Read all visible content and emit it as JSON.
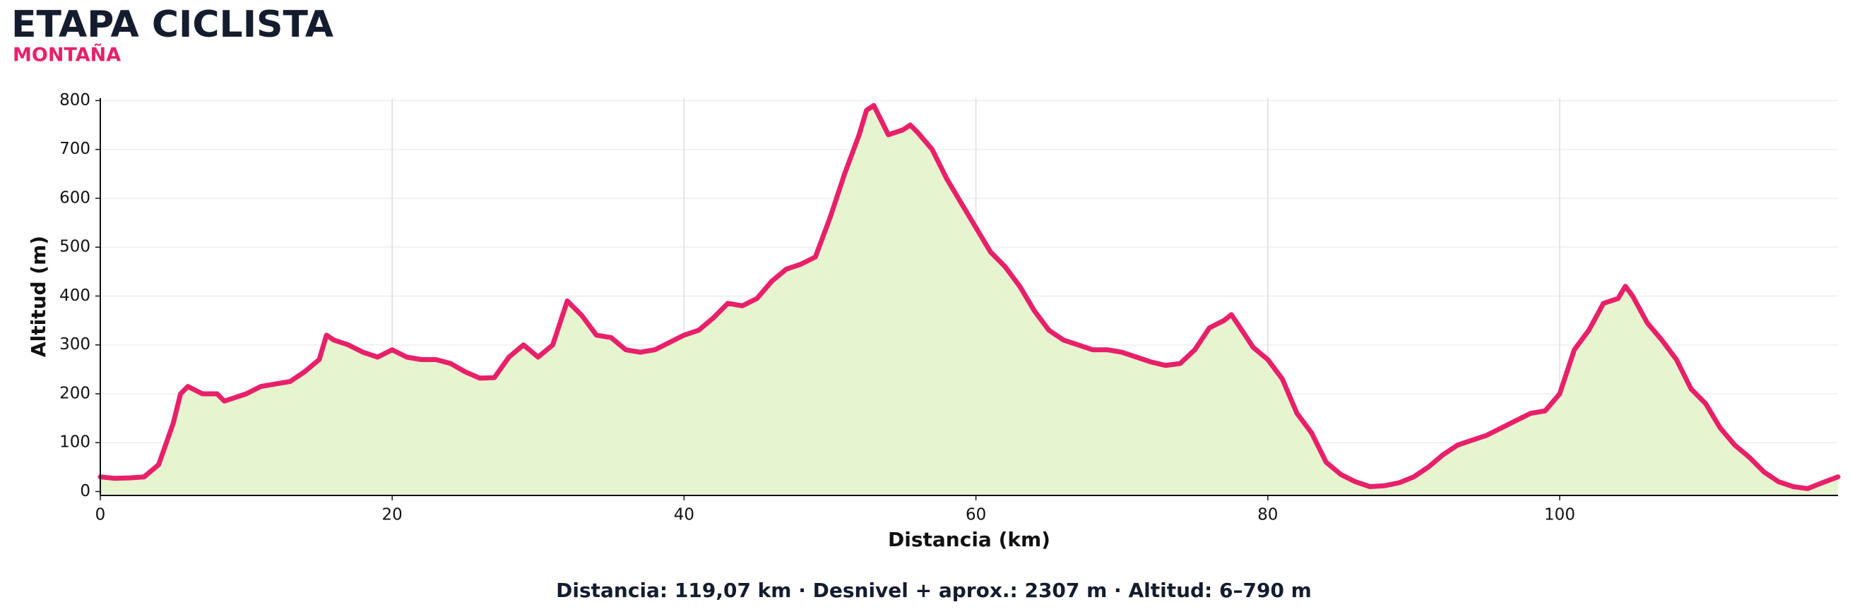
{
  "chart_data": {
    "type": "area",
    "title": "ETAPA CICLISTA",
    "subtitle": "MONTAÑA",
    "xlabel": "Distancia (km)",
    "ylabel": "Altitud (m)",
    "annotation": "Distancia: 119,07 km · Desnivel + aprox.: 2307 m · Altitud: 6–790 m",
    "color": "#e8206a",
    "fill_color": "#e6f5d0",
    "grid": true,
    "xlim": [
      0,
      119.07
    ],
    "ylim": [
      -8,
      805
    ],
    "xticks": [
      0,
      20,
      40,
      60,
      80,
      100
    ],
    "yticks": [
      0,
      100,
      200,
      300,
      400,
      500,
      600,
      700,
      800
    ],
    "x": [
      0,
      1,
      2,
      3,
      4,
      5,
      5.5,
      6,
      7,
      8,
      8.5,
      9,
      10,
      11,
      12,
      13,
      14,
      15,
      15.5,
      16,
      17,
      18,
      19,
      20,
      21,
      22,
      23,
      24,
      25,
      26,
      27,
      28,
      29,
      30,
      31,
      32,
      33,
      34,
      35,
      36,
      37,
      38,
      39,
      40,
      41,
      42,
      43,
      44,
      45,
      46,
      47,
      48,
      49,
      50,
      51,
      52,
      52.5,
      53,
      54,
      55,
      55.5,
      56,
      57,
      58,
      59,
      60,
      61,
      62,
      63,
      64,
      65,
      66,
      67,
      68,
      69,
      70,
      71,
      72,
      73,
      74,
      75,
      76,
      77,
      77.5,
      78,
      79,
      80,
      81,
      82,
      83,
      84,
      85,
      86,
      87,
      88,
      89,
      90,
      91,
      92,
      93,
      94,
      95,
      96,
      97,
      98,
      99,
      100,
      101,
      102,
      103,
      104,
      104.5,
      105,
      106,
      107,
      108,
      109,
      110,
      111,
      112,
      113,
      114,
      115,
      116,
      117,
      118,
      119.07
    ],
    "values": [
      30,
      27,
      28,
      30,
      55,
      140,
      200,
      215,
      200,
      200,
      185,
      190,
      200,
      215,
      220,
      225,
      245,
      270,
      320,
      310,
      300,
      285,
      275,
      290,
      275,
      270,
      270,
      262,
      245,
      232,
      233,
      275,
      300,
      275,
      300,
      390,
      360,
      320,
      315,
      290,
      285,
      290,
      305,
      320,
      330,
      355,
      385,
      380,
      395,
      430,
      455,
      465,
      480,
      560,
      650,
      730,
      780,
      790,
      730,
      740,
      750,
      735,
      700,
      640,
      590,
      540,
      490,
      460,
      420,
      370,
      330,
      310,
      300,
      290,
      290,
      285,
      275,
      265,
      258,
      262,
      290,
      335,
      350,
      362,
      340,
      295,
      270,
      230,
      160,
      120,
      60,
      35,
      20,
      10,
      12,
      18,
      30,
      50,
      75,
      95,
      105,
      115,
      130,
      145,
      160,
      165,
      200,
      290,
      330,
      385,
      395,
      420,
      400,
      345,
      310,
      270,
      210,
      180,
      130,
      95,
      70,
      40,
      20,
      10,
      6,
      18,
      30
    ]
  }
}
